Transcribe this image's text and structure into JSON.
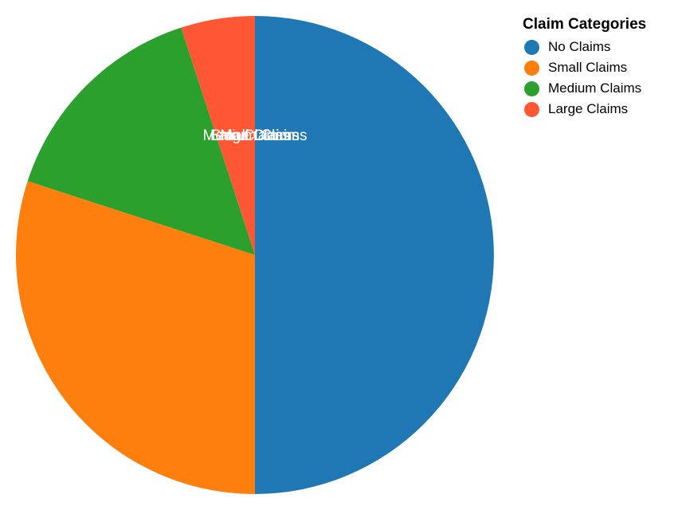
{
  "chart_data": {
    "type": "pie",
    "categories": [
      "No Claims",
      "Small Claims",
      "Medium Claims",
      "Large Claims"
    ],
    "values": [
      50,
      30,
      15,
      5
    ],
    "colors": [
      "#1f77b4",
      "#ff7f0e",
      "#2ca02c",
      "#ff5733"
    ],
    "slice_label_color": "#ffffff",
    "legend": {
      "title": "Claim Categories",
      "position": "top-right"
    }
  }
}
